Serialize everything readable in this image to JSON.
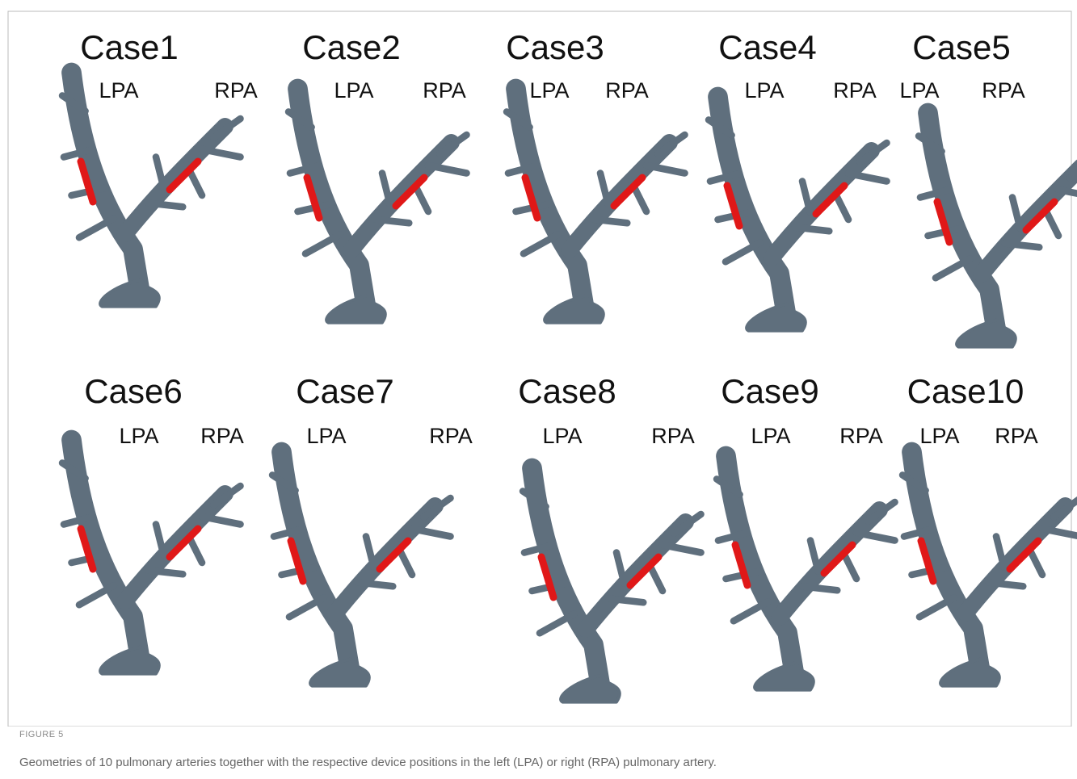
{
  "cases": [
    {
      "title": "Case1",
      "lpa": "LPA",
      "rpa": "RPA"
    },
    {
      "title": "Case2",
      "lpa": "LPA",
      "rpa": "RPA"
    },
    {
      "title": "Case3",
      "lpa": "LPA",
      "rpa": "RPA"
    },
    {
      "title": "Case4",
      "lpa": "LPA",
      "rpa": "RPA"
    },
    {
      "title": "Case5",
      "lpa": "LPA",
      "rpa": "RPA"
    },
    {
      "title": "Case6",
      "lpa": "LPA",
      "rpa": "RPA"
    },
    {
      "title": "Case7",
      "lpa": "LPA",
      "rpa": "RPA"
    },
    {
      "title": "Case8",
      "lpa": "LPA",
      "rpa": "RPA"
    },
    {
      "title": "Case9",
      "lpa": "LPA",
      "rpa": "RPA"
    },
    {
      "title": "Case10",
      "lpa": "LPA",
      "rpa": "RPA"
    }
  ],
  "figure_label": "FIGURE 5",
  "caption": "Geometries of 10 pulmonary arteries together with the respective device positions in the left (LPA) or right (RPA) pulmonary artery."
}
